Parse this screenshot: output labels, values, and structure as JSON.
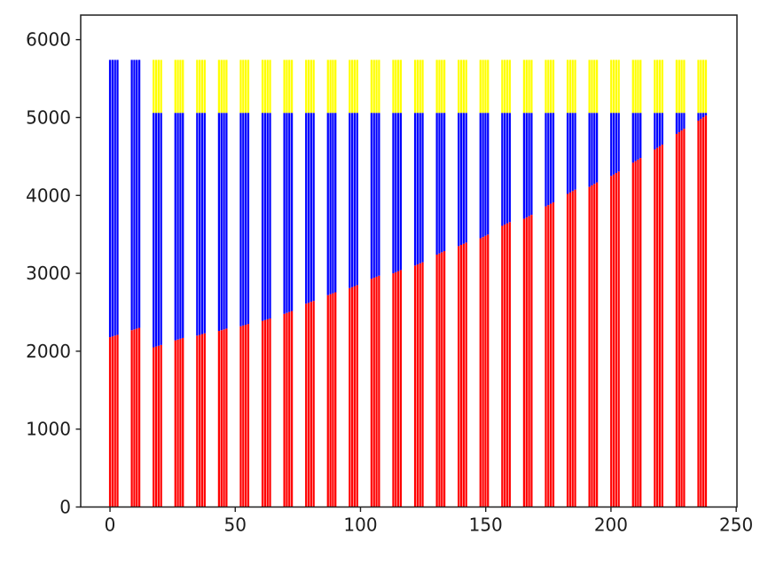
{
  "figure": {
    "background": "#ffffff",
    "title": ""
  },
  "chart_data": {
    "type": "bar",
    "stacked": true,
    "title": "",
    "xlabel": "",
    "ylabel": "",
    "grid": false,
    "legend": null,
    "xlim": [
      -11.7,
      250.3
    ],
    "ylim": [
      0,
      6315
    ],
    "x_ticks": [
      0,
      50,
      100,
      150,
      200,
      250
    ],
    "y_ticks": [
      0,
      1000,
      2000,
      3000,
      4000,
      5000,
      6000
    ],
    "axis_color": "#1f1f1f",
    "series_colors": {
      "red": "#ff0000",
      "blue": "#0000ff",
      "yellow": "#ffff00"
    },
    "bar_width": 0.8,
    "bars_per_cluster": 4,
    "cluster_spacing": 8.7,
    "clusters": [
      {
        "x_start": 0.0,
        "red": [
          2180,
          2190,
          2200,
          2210
        ],
        "blue_top": 5740,
        "yellow_top": null
      },
      {
        "x_start": 8.7,
        "red": [
          2270,
          2280,
          2290,
          2300
        ],
        "blue_top": 5740,
        "yellow_top": null
      },
      {
        "x_start": 17.4,
        "red": [
          2050,
          2060,
          2070,
          2080
        ],
        "blue_top": 5060,
        "yellow_top": 5740
      },
      {
        "x_start": 26.1,
        "red": [
          2140,
          2150,
          2160,
          2170
        ],
        "blue_top": 5060,
        "yellow_top": 5740
      },
      {
        "x_start": 34.8,
        "red": [
          2200,
          2210,
          2220,
          2230
        ],
        "blue_top": 5060,
        "yellow_top": 5740
      },
      {
        "x_start": 43.5,
        "red": [
          2260,
          2270,
          2280,
          2290
        ],
        "blue_top": 5060,
        "yellow_top": 5740
      },
      {
        "x_start": 52.2,
        "red": [
          2320,
          2330,
          2340,
          2350
        ],
        "blue_top": 5060,
        "yellow_top": 5740
      },
      {
        "x_start": 60.9,
        "red": [
          2390,
          2400,
          2410,
          2420
        ],
        "blue_top": 5060,
        "yellow_top": 5740
      },
      {
        "x_start": 69.6,
        "red": [
          2480,
          2492,
          2504,
          2516
        ],
        "blue_top": 5060,
        "yellow_top": 5740
      },
      {
        "x_start": 78.3,
        "red": [
          2610,
          2622,
          2634,
          2646
        ],
        "blue_top": 5060,
        "yellow_top": 5740
      },
      {
        "x_start": 87.0,
        "red": [
          2720,
          2732,
          2744,
          2756
        ],
        "blue_top": 5060,
        "yellow_top": 5740
      },
      {
        "x_start": 95.7,
        "red": [
          2810,
          2823,
          2836,
          2849
        ],
        "blue_top": 5060,
        "yellow_top": 5740
      },
      {
        "x_start": 104.4,
        "red": [
          2930,
          2943,
          2956,
          2969
        ],
        "blue_top": 5060,
        "yellow_top": 5740
      },
      {
        "x_start": 113.1,
        "red": [
          3000,
          3014,
          3028,
          3042
        ],
        "blue_top": 5060,
        "yellow_top": 5740
      },
      {
        "x_start": 121.8,
        "red": [
          3100,
          3114,
          3128,
          3142
        ],
        "blue_top": 5060,
        "yellow_top": 5740
      },
      {
        "x_start": 130.5,
        "red": [
          3240,
          3255,
          3270,
          3285
        ],
        "blue_top": 5060,
        "yellow_top": 5740
      },
      {
        "x_start": 139.2,
        "red": [
          3350,
          3365,
          3380,
          3395
        ],
        "blue_top": 5060,
        "yellow_top": 5740
      },
      {
        "x_start": 147.9,
        "red": [
          3450,
          3466,
          3482,
          3498
        ],
        "blue_top": 5060,
        "yellow_top": 5740
      },
      {
        "x_start": 156.6,
        "red": [
          3610,
          3626,
          3642,
          3658
        ],
        "blue_top": 5060,
        "yellow_top": 5740
      },
      {
        "x_start": 165.3,
        "red": [
          3700,
          3717,
          3734,
          3751
        ],
        "blue_top": 5060,
        "yellow_top": 5740
      },
      {
        "x_start": 174.0,
        "red": [
          3860,
          3877,
          3894,
          3911
        ],
        "blue_top": 5060,
        "yellow_top": 5740
      },
      {
        "x_start": 182.7,
        "red": [
          4020,
          4038,
          4056,
          4074
        ],
        "blue_top": 5060,
        "yellow_top": 5740
      },
      {
        "x_start": 191.4,
        "red": [
          4110,
          4129,
          4148,
          4167
        ],
        "blue_top": 5060,
        "yellow_top": 5740
      },
      {
        "x_start": 200.1,
        "red": [
          4250,
          4269,
          4288,
          4307
        ],
        "blue_top": 5060,
        "yellow_top": 5740
      },
      {
        "x_start": 208.8,
        "red": [
          4420,
          4440,
          4460,
          4480
        ],
        "blue_top": 5060,
        "yellow_top": 5740
      },
      {
        "x_start": 217.5,
        "red": [
          4590,
          4611,
          4632,
          4653
        ],
        "blue_top": 5060,
        "yellow_top": 5740
      },
      {
        "x_start": 226.2,
        "red": [
          4790,
          4812,
          4834,
          4856
        ],
        "blue_top": 5060,
        "yellow_top": 5740
      },
      {
        "x_start": 234.9,
        "red": [
          4960,
          4982,
          5004,
          5026
        ],
        "blue_top": 5060,
        "yellow_top": 5740
      }
    ]
  }
}
